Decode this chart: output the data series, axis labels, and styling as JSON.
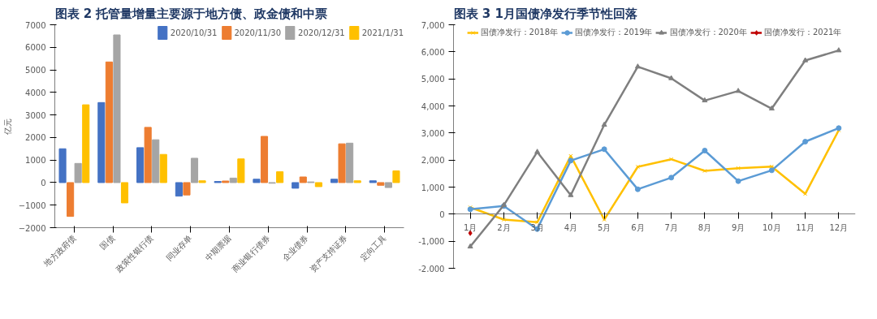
{
  "chart_data": [
    {
      "type": "bar",
      "title": "图表 2 托管量增量主要源于地方债、政金债和中票",
      "ylabel": "亿元",
      "categories": [
        "地方政府债",
        "国债",
        "政策性银行债",
        "同业存单",
        "中期票据",
        "商业银行债券",
        "企业债券",
        "资产支持证券",
        "定向工具"
      ],
      "series": [
        {
          "name": "2020/10/31",
          "color": "#4472c4",
          "values": [
            1500,
            3550,
            1550,
            -600,
            50,
            150,
            -250,
            150,
            80
          ]
        },
        {
          "name": "2020/11/30",
          "color": "#ed7d31",
          "values": [
            -1500,
            5350,
            2450,
            -550,
            70,
            2050,
            250,
            1720,
            -120
          ]
        },
        {
          "name": "2020/12/31",
          "color": "#a5a5a5",
          "values": [
            850,
            6550,
            1900,
            1080,
            200,
            -30,
            30,
            1750,
            -220
          ]
        },
        {
          "name": "2021/1/31",
          "color": "#ffc000",
          "values": [
            3450,
            -900,
            1250,
            80,
            1050,
            480,
            -180,
            80,
            520
          ]
        }
      ],
      "ylim": [
        -2000,
        7000
      ],
      "yticks": [
        -2000,
        -1000,
        0,
        1000,
        2000,
        3000,
        4000,
        5000,
        6000,
        7000
      ],
      "grid": false,
      "legend": "top right"
    },
    {
      "type": "line",
      "title": "图表 3 1月国债净发行季节性回落",
      "categories": [
        "1月",
        "2月",
        "3月",
        "4月",
        "5月",
        "6月",
        "7月",
        "8月",
        "9月",
        "10月",
        "11月",
        "12月"
      ],
      "series": [
        {
          "name": "国债净发行：2018年",
          "color": "#ffc000",
          "marker": "cross",
          "values": [
            250,
            -200,
            -300,
            2150,
            -200,
            1750,
            2030,
            1600,
            1700,
            1760,
            750,
            3100
          ]
        },
        {
          "name": "国债净发行：2019年",
          "color": "#5b9bd5",
          "marker": "circle",
          "values": [
            180,
            300,
            -550,
            1980,
            2400,
            920,
            1350,
            2350,
            1220,
            1620,
            2680,
            3180
          ]
        },
        {
          "name": "国债净发行：2020年",
          "color": "#7f7f7f",
          "marker": "triangle",
          "values": [
            -1200,
            330,
            2300,
            700,
            3300,
            5450,
            5020,
            4200,
            4550,
            3900,
            5680,
            6050
          ]
        },
        {
          "name": "国债净发行：2021年",
          "color": "#c00000",
          "marker": "diamond",
          "values": [
            -700,
            null,
            null,
            null,
            null,
            null,
            null,
            null,
            null,
            null,
            null,
            null
          ]
        }
      ],
      "ylim": [
        -2000,
        7000
      ],
      "yticks": [
        {
          "value": -2000,
          "label": "-2,000"
        },
        {
          "value": -1000,
          "label": "-1,000"
        },
        0,
        {
          "value": 1000,
          "label": "1,000"
        },
        {
          "value": 2000,
          "label": "2,000"
        },
        {
          "value": 3000,
          "label": "3,000"
        },
        {
          "value": 4000,
          "label": "4,000"
        },
        {
          "value": 5000,
          "label": "5,000"
        },
        {
          "value": 6000,
          "label": "6,000"
        },
        {
          "value": 7000,
          "label": "7,000"
        }
      ],
      "grid": false,
      "legend": "top",
      "line_style": "solid"
    }
  ]
}
